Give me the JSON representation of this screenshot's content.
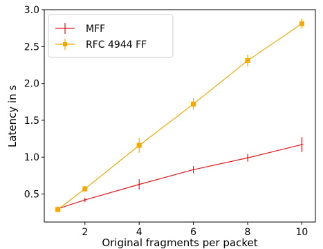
{
  "chart_data": {
    "type": "line",
    "xlabel": "Original fragments per packet",
    "ylabel": "Latency in s",
    "xlim": [
      0.5,
      10.5
    ],
    "ylim": [
      0.12,
      3.0
    ],
    "xticks": [
      2,
      4,
      6,
      8,
      10
    ],
    "yticks": [
      0.5,
      1.0,
      1.5,
      2.0,
      2.5,
      3.0
    ],
    "xtick_labels": [
      "2",
      "4",
      "6",
      "8",
      "10"
    ],
    "ytick_labels": [
      "0.5",
      "1.0",
      "1.5",
      "2.0",
      "2.5",
      "3.0"
    ],
    "grid": false,
    "legend_position": "top-left",
    "series": [
      {
        "name": "MFF",
        "color": "#e31a1c",
        "marker": "none",
        "x": [
          1,
          2,
          4,
          6,
          8,
          10
        ],
        "y": [
          0.3,
          0.42,
          0.63,
          0.83,
          0.99,
          1.17
        ],
        "err": [
          0.03,
          0.03,
          0.07,
          0.05,
          0.05,
          0.1
        ]
      },
      {
        "name": "RFC 4944 FF",
        "color": "#f5a800",
        "marker": "square",
        "x": [
          1,
          2,
          4,
          6,
          8,
          10
        ],
        "y": [
          0.29,
          0.57,
          1.16,
          1.72,
          2.31,
          2.81
        ],
        "err": [
          0.03,
          0.04,
          0.1,
          0.08,
          0.08,
          0.07
        ]
      }
    ]
  }
}
